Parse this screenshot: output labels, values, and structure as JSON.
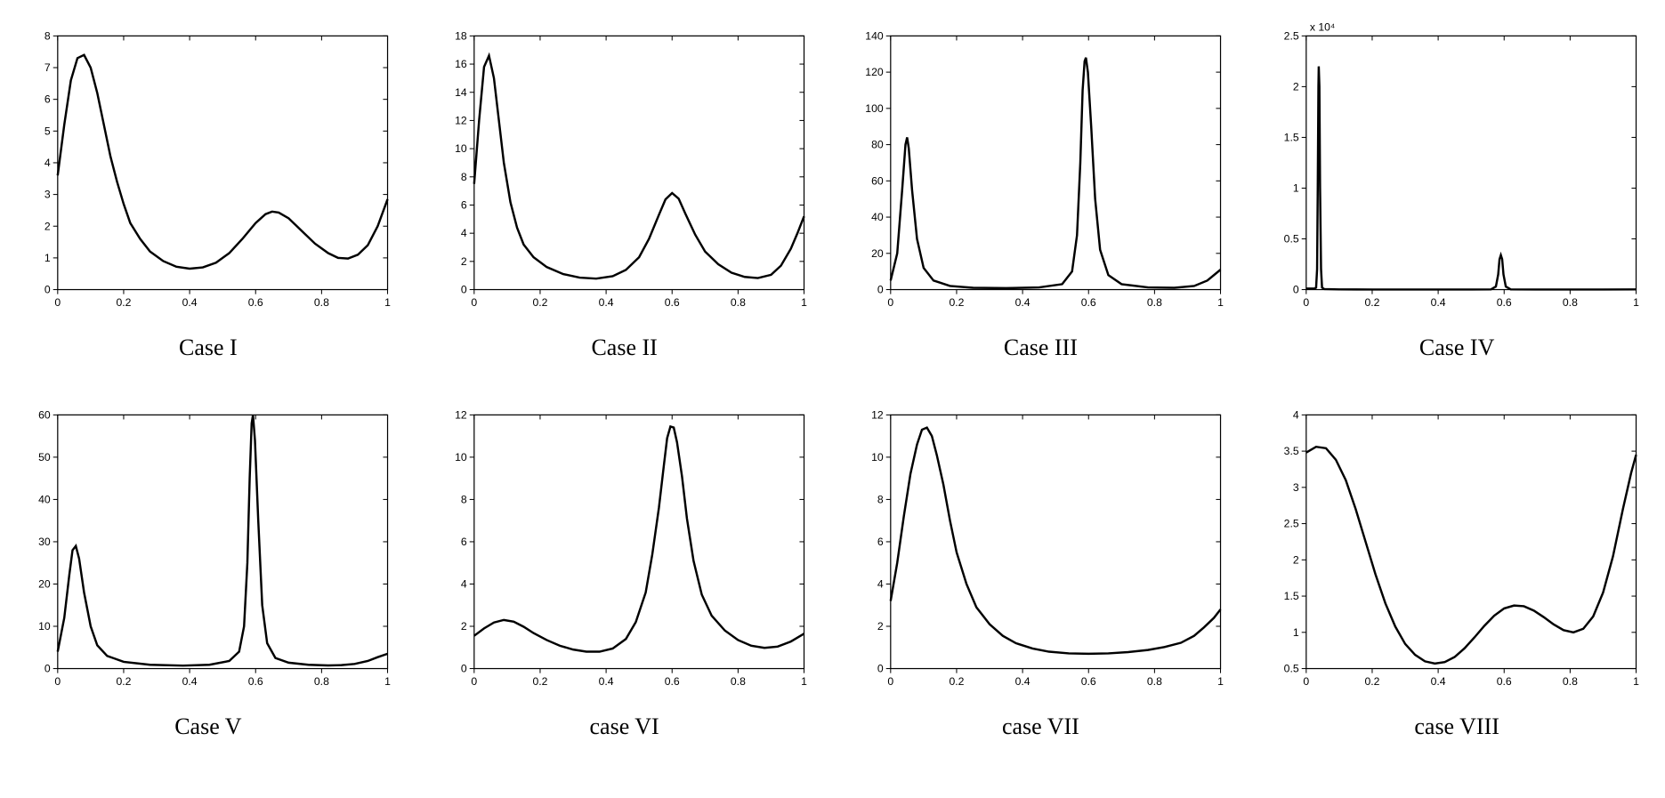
{
  "layout": {
    "rows": 2,
    "cols": 4
  },
  "colors": {
    "background": "#ffffff",
    "axis": "#000000",
    "line": "#000000",
    "text": "#000000"
  },
  "typography": {
    "caption_family": "Times New Roman, serif",
    "caption_fontsize_pt": 20,
    "tick_family": "Arial, sans-serif",
    "tick_fontsize_pt": 9
  },
  "chart_defaults": {
    "type": "line",
    "xlim": [
      0,
      1
    ],
    "xticks": [
      0,
      0.2,
      0.4,
      0.6,
      0.8,
      1
    ],
    "xtick_labels": [
      "0",
      "0.2",
      "0.4",
      "0.6",
      "0.8",
      "1"
    ],
    "line_width": 2.4,
    "axis_width": 1.2,
    "aspect_ratio": 1.28
  },
  "panels": [
    {
      "id": "case1",
      "caption": "Case I",
      "ylim": [
        0,
        8
      ],
      "yticks": [
        0,
        1,
        2,
        3,
        4,
        5,
        6,
        7,
        8
      ],
      "ytick_labels": [
        "0",
        "1",
        "2",
        "3",
        "4",
        "5",
        "6",
        "7",
        "8"
      ],
      "data": [
        [
          0.0,
          3.6
        ],
        [
          0.02,
          5.2
        ],
        [
          0.04,
          6.6
        ],
        [
          0.06,
          7.3
        ],
        [
          0.08,
          7.4
        ],
        [
          0.1,
          7.0
        ],
        [
          0.12,
          6.2
        ],
        [
          0.14,
          5.2
        ],
        [
          0.16,
          4.2
        ],
        [
          0.18,
          3.4
        ],
        [
          0.2,
          2.7
        ],
        [
          0.22,
          2.1
        ],
        [
          0.25,
          1.6
        ],
        [
          0.28,
          1.2
        ],
        [
          0.32,
          0.9
        ],
        [
          0.36,
          0.72
        ],
        [
          0.4,
          0.66
        ],
        [
          0.44,
          0.7
        ],
        [
          0.48,
          0.85
        ],
        [
          0.52,
          1.15
        ],
        [
          0.56,
          1.6
        ],
        [
          0.6,
          2.1
        ],
        [
          0.63,
          2.38
        ],
        [
          0.65,
          2.46
        ],
        [
          0.67,
          2.43
        ],
        [
          0.7,
          2.25
        ],
        [
          0.74,
          1.85
        ],
        [
          0.78,
          1.45
        ],
        [
          0.82,
          1.15
        ],
        [
          0.85,
          1.0
        ],
        [
          0.88,
          0.98
        ],
        [
          0.91,
          1.1
        ],
        [
          0.94,
          1.4
        ],
        [
          0.97,
          2.0
        ],
        [
          1.0,
          2.85
        ]
      ]
    },
    {
      "id": "case2",
      "caption": "Case II",
      "ylim": [
        0,
        18
      ],
      "yticks": [
        0,
        2,
        4,
        6,
        8,
        10,
        12,
        14,
        16,
        18
      ],
      "ytick_labels": [
        "0",
        "2",
        "4",
        "6",
        "8",
        "10",
        "12",
        "14",
        "16",
        "18"
      ],
      "data": [
        [
          0.0,
          7.5
        ],
        [
          0.015,
          12.0
        ],
        [
          0.03,
          15.8
        ],
        [
          0.045,
          16.6
        ],
        [
          0.06,
          15.0
        ],
        [
          0.075,
          12.0
        ],
        [
          0.09,
          9.0
        ],
        [
          0.11,
          6.2
        ],
        [
          0.13,
          4.4
        ],
        [
          0.15,
          3.2
        ],
        [
          0.18,
          2.3
        ],
        [
          0.22,
          1.6
        ],
        [
          0.27,
          1.1
        ],
        [
          0.32,
          0.85
        ],
        [
          0.37,
          0.78
        ],
        [
          0.42,
          0.95
        ],
        [
          0.46,
          1.4
        ],
        [
          0.5,
          2.3
        ],
        [
          0.53,
          3.6
        ],
        [
          0.56,
          5.3
        ],
        [
          0.58,
          6.4
        ],
        [
          0.6,
          6.85
        ],
        [
          0.62,
          6.45
        ],
        [
          0.64,
          5.4
        ],
        [
          0.67,
          3.9
        ],
        [
          0.7,
          2.7
        ],
        [
          0.74,
          1.8
        ],
        [
          0.78,
          1.2
        ],
        [
          0.82,
          0.9
        ],
        [
          0.86,
          0.82
        ],
        [
          0.9,
          1.05
        ],
        [
          0.93,
          1.7
        ],
        [
          0.96,
          2.9
        ],
        [
          0.98,
          4.0
        ],
        [
          1.0,
          5.2
        ]
      ]
    },
    {
      "id": "case3",
      "caption": "Case III",
      "ylim": [
        0,
        140
      ],
      "yticks": [
        0,
        20,
        40,
        60,
        80,
        100,
        120,
        140
      ],
      "ytick_labels": [
        "0",
        "20",
        "40",
        "60",
        "80",
        "100",
        "120",
        "140"
      ],
      "data": [
        [
          0.0,
          5
        ],
        [
          0.02,
          20
        ],
        [
          0.035,
          55
        ],
        [
          0.045,
          80
        ],
        [
          0.05,
          84
        ],
        [
          0.055,
          78
        ],
        [
          0.065,
          55
        ],
        [
          0.08,
          28
        ],
        [
          0.1,
          12
        ],
        [
          0.13,
          5
        ],
        [
          0.18,
          2
        ],
        [
          0.25,
          1
        ],
        [
          0.35,
          0.8
        ],
        [
          0.45,
          1.2
        ],
        [
          0.52,
          3
        ],
        [
          0.55,
          10
        ],
        [
          0.565,
          30
        ],
        [
          0.575,
          70
        ],
        [
          0.582,
          110
        ],
        [
          0.588,
          126
        ],
        [
          0.592,
          128
        ],
        [
          0.598,
          120
        ],
        [
          0.608,
          90
        ],
        [
          0.62,
          50
        ],
        [
          0.635,
          22
        ],
        [
          0.66,
          8
        ],
        [
          0.7,
          3
        ],
        [
          0.78,
          1.2
        ],
        [
          0.86,
          1.0
        ],
        [
          0.92,
          2.0
        ],
        [
          0.96,
          5
        ],
        [
          1.0,
          11
        ]
      ]
    },
    {
      "id": "case4",
      "caption": "Case IV",
      "ylim": [
        0,
        2.5
      ],
      "yticks": [
        0,
        0.5,
        1,
        1.5,
        2,
        2.5
      ],
      "ytick_labels": [
        "0",
        "0.5",
        "1",
        "1.5",
        "2",
        "2.5"
      ],
      "exponent_label": "x 10⁴",
      "data": [
        [
          0.0,
          0.01
        ],
        [
          0.025,
          0.01
        ],
        [
          0.03,
          0.02
        ],
        [
          0.033,
          0.2
        ],
        [
          0.035,
          1.0
        ],
        [
          0.037,
          2.0
        ],
        [
          0.038,
          2.2
        ],
        [
          0.04,
          2.0
        ],
        [
          0.042,
          1.0
        ],
        [
          0.045,
          0.2
        ],
        [
          0.048,
          0.02
        ],
        [
          0.055,
          0.005
        ],
        [
          0.1,
          0.002
        ],
        [
          0.2,
          0.001
        ],
        [
          0.3,
          0.001
        ],
        [
          0.4,
          0.001
        ],
        [
          0.5,
          0.001
        ],
        [
          0.56,
          0.002
        ],
        [
          0.575,
          0.03
        ],
        [
          0.582,
          0.15
        ],
        [
          0.586,
          0.3
        ],
        [
          0.59,
          0.34
        ],
        [
          0.594,
          0.3
        ],
        [
          0.598,
          0.15
        ],
        [
          0.605,
          0.03
        ],
        [
          0.62,
          0.002
        ],
        [
          0.7,
          0.001
        ],
        [
          0.8,
          0.001
        ],
        [
          0.9,
          0.001
        ],
        [
          1.0,
          0.002
        ]
      ]
    },
    {
      "id": "case5",
      "caption": "Case V",
      "ylim": [
        0,
        60
      ],
      "yticks": [
        0,
        10,
        20,
        30,
        40,
        50,
        60
      ],
      "ytick_labels": [
        "0",
        "10",
        "20",
        "30",
        "40",
        "50",
        "60"
      ],
      "data": [
        [
          0.0,
          4
        ],
        [
          0.02,
          12
        ],
        [
          0.035,
          22
        ],
        [
          0.045,
          28
        ],
        [
          0.055,
          29
        ],
        [
          0.065,
          26
        ],
        [
          0.08,
          18
        ],
        [
          0.1,
          10
        ],
        [
          0.12,
          5.5
        ],
        [
          0.15,
          3
        ],
        [
          0.2,
          1.6
        ],
        [
          0.28,
          0.9
        ],
        [
          0.38,
          0.7
        ],
        [
          0.46,
          0.9
        ],
        [
          0.52,
          1.8
        ],
        [
          0.55,
          4
        ],
        [
          0.565,
          10
        ],
        [
          0.575,
          25
        ],
        [
          0.582,
          45
        ],
        [
          0.588,
          58
        ],
        [
          0.592,
          60
        ],
        [
          0.598,
          54
        ],
        [
          0.608,
          35
        ],
        [
          0.62,
          15
        ],
        [
          0.635,
          6
        ],
        [
          0.66,
          2.5
        ],
        [
          0.7,
          1.4
        ],
        [
          0.76,
          0.9
        ],
        [
          0.82,
          0.75
        ],
        [
          0.86,
          0.82
        ],
        [
          0.9,
          1.1
        ],
        [
          0.94,
          1.8
        ],
        [
          0.97,
          2.7
        ],
        [
          1.0,
          3.5
        ]
      ]
    },
    {
      "id": "case6",
      "caption": "case VI",
      "ylim": [
        0,
        12
      ],
      "yticks": [
        0,
        2,
        4,
        6,
        8,
        10,
        12
      ],
      "ytick_labels": [
        "0",
        "2",
        "4",
        "6",
        "8",
        "10",
        "12"
      ],
      "data": [
        [
          0.0,
          1.55
        ],
        [
          0.03,
          1.9
        ],
        [
          0.06,
          2.18
        ],
        [
          0.09,
          2.3
        ],
        [
          0.12,
          2.22
        ],
        [
          0.15,
          1.98
        ],
        [
          0.18,
          1.68
        ],
        [
          0.22,
          1.35
        ],
        [
          0.26,
          1.08
        ],
        [
          0.3,
          0.9
        ],
        [
          0.34,
          0.8
        ],
        [
          0.38,
          0.8
        ],
        [
          0.42,
          0.95
        ],
        [
          0.46,
          1.4
        ],
        [
          0.49,
          2.2
        ],
        [
          0.52,
          3.6
        ],
        [
          0.54,
          5.4
        ],
        [
          0.56,
          7.6
        ],
        [
          0.575,
          9.6
        ],
        [
          0.585,
          10.9
        ],
        [
          0.595,
          11.45
        ],
        [
          0.605,
          11.4
        ],
        [
          0.615,
          10.7
        ],
        [
          0.63,
          9.1
        ],
        [
          0.645,
          7.1
        ],
        [
          0.665,
          5.1
        ],
        [
          0.69,
          3.5
        ],
        [
          0.72,
          2.5
        ],
        [
          0.76,
          1.8
        ],
        [
          0.8,
          1.35
        ],
        [
          0.84,
          1.08
        ],
        [
          0.88,
          0.98
        ],
        [
          0.92,
          1.04
        ],
        [
          0.96,
          1.28
        ],
        [
          1.0,
          1.65
        ]
      ]
    },
    {
      "id": "case7",
      "caption": "case VII",
      "ylim": [
        0,
        12
      ],
      "yticks": [
        0,
        2,
        4,
        6,
        8,
        10,
        12
      ],
      "ytick_labels": [
        "0",
        "2",
        "4",
        "6",
        "8",
        "10",
        "12"
      ],
      "data": [
        [
          0.0,
          3.2
        ],
        [
          0.02,
          5.0
        ],
        [
          0.04,
          7.2
        ],
        [
          0.06,
          9.2
        ],
        [
          0.08,
          10.6
        ],
        [
          0.095,
          11.3
        ],
        [
          0.11,
          11.4
        ],
        [
          0.125,
          11.0
        ],
        [
          0.14,
          10.1
        ],
        [
          0.16,
          8.7
        ],
        [
          0.18,
          7.0
        ],
        [
          0.2,
          5.5
        ],
        [
          0.23,
          4.0
        ],
        [
          0.26,
          2.9
        ],
        [
          0.3,
          2.1
        ],
        [
          0.34,
          1.55
        ],
        [
          0.38,
          1.2
        ],
        [
          0.43,
          0.95
        ],
        [
          0.48,
          0.8
        ],
        [
          0.54,
          0.72
        ],
        [
          0.6,
          0.7
        ],
        [
          0.66,
          0.72
        ],
        [
          0.72,
          0.78
        ],
        [
          0.78,
          0.88
        ],
        [
          0.83,
          1.02
        ],
        [
          0.88,
          1.22
        ],
        [
          0.92,
          1.55
        ],
        [
          0.95,
          1.95
        ],
        [
          0.98,
          2.4
        ],
        [
          1.0,
          2.8
        ]
      ]
    },
    {
      "id": "case8",
      "caption": "case VIII",
      "ylim": [
        0.5,
        4
      ],
      "yticks": [
        0.5,
        1,
        1.5,
        2,
        2.5,
        3,
        3.5,
        4
      ],
      "ytick_labels": [
        "0.5",
        "1",
        "1.5",
        "2",
        "2.5",
        "3",
        "3.5",
        "4"
      ],
      "data": [
        [
          0.0,
          3.48
        ],
        [
          0.03,
          3.56
        ],
        [
          0.06,
          3.54
        ],
        [
          0.09,
          3.38
        ],
        [
          0.12,
          3.1
        ],
        [
          0.15,
          2.7
        ],
        [
          0.18,
          2.25
        ],
        [
          0.21,
          1.8
        ],
        [
          0.24,
          1.4
        ],
        [
          0.27,
          1.08
        ],
        [
          0.3,
          0.84
        ],
        [
          0.33,
          0.69
        ],
        [
          0.36,
          0.6
        ],
        [
          0.39,
          0.57
        ],
        [
          0.42,
          0.59
        ],
        [
          0.45,
          0.66
        ],
        [
          0.48,
          0.78
        ],
        [
          0.51,
          0.93
        ],
        [
          0.54,
          1.09
        ],
        [
          0.57,
          1.23
        ],
        [
          0.6,
          1.33
        ],
        [
          0.63,
          1.37
        ],
        [
          0.66,
          1.36
        ],
        [
          0.69,
          1.3
        ],
        [
          0.72,
          1.21
        ],
        [
          0.75,
          1.11
        ],
        [
          0.78,
          1.03
        ],
        [
          0.81,
          1.0
        ],
        [
          0.84,
          1.05
        ],
        [
          0.87,
          1.22
        ],
        [
          0.9,
          1.55
        ],
        [
          0.93,
          2.05
        ],
        [
          0.96,
          2.7
        ],
        [
          0.985,
          3.2
        ],
        [
          1.0,
          3.45
        ]
      ]
    }
  ]
}
